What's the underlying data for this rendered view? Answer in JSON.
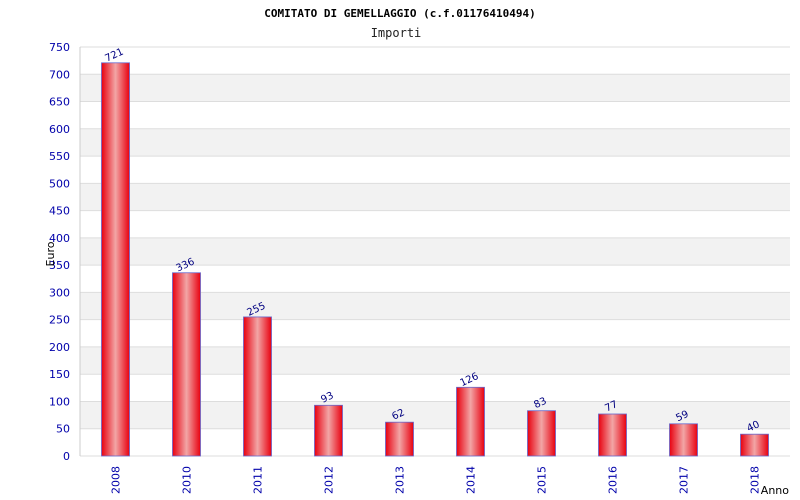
{
  "chart_data": {
    "type": "bar",
    "title": "COMITATO DI GEMELLAGGIO (c.f.01176410494)",
    "subtitle": "Importi",
    "xlabel": "Anno",
    "ylabel": "Euro",
    "categories": [
      "2008",
      "2010",
      "2011",
      "2012",
      "2013",
      "2014",
      "2015",
      "2016",
      "2017",
      "2018"
    ],
    "values": [
      721,
      336,
      255,
      93,
      62,
      126,
      83,
      77,
      59,
      40
    ],
    "ylim": [
      0,
      750
    ],
    "yticks": [
      0,
      50,
      100,
      150,
      200,
      250,
      300,
      350,
      400,
      450,
      500,
      550,
      600,
      650,
      700,
      750
    ],
    "grid": true,
    "colors": {
      "bar_edge": "#e8000f",
      "bar_highlight": "#f2a6a6",
      "bar_border": "#6666cc",
      "band": "#f2f2f2",
      "grid": "#dddddd",
      "tick_text": "#0000aa",
      "value_text": "#000080"
    }
  }
}
